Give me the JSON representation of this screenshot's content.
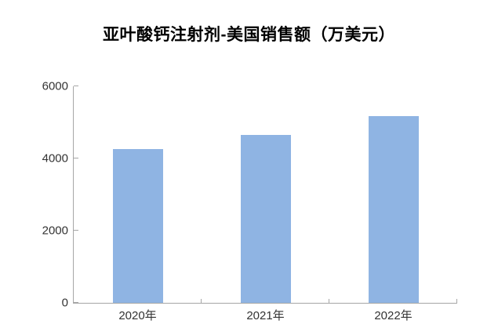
{
  "chart": {
    "title": "亚叶酸钙注射剂-美国销售额（万美元）"
  },
  "chart_data": {
    "type": "bar",
    "title": "亚叶酸钙注射剂-美国销售额（万美元）",
    "categories": [
      "2020年",
      "2021年",
      "2022年"
    ],
    "values": [
      4270,
      4650,
      5170
    ],
    "xlabel": "",
    "ylabel": "",
    "ylim": [
      0,
      6000
    ],
    "yticks": [
      0,
      2000,
      4000,
      6000
    ],
    "grid": false,
    "legend": "none",
    "bar_color": "#8FB4E3",
    "axis_color": "#A6A6A6",
    "label_color": "#333333",
    "title_color": "#000000",
    "background_color": "#FFFFFF"
  }
}
